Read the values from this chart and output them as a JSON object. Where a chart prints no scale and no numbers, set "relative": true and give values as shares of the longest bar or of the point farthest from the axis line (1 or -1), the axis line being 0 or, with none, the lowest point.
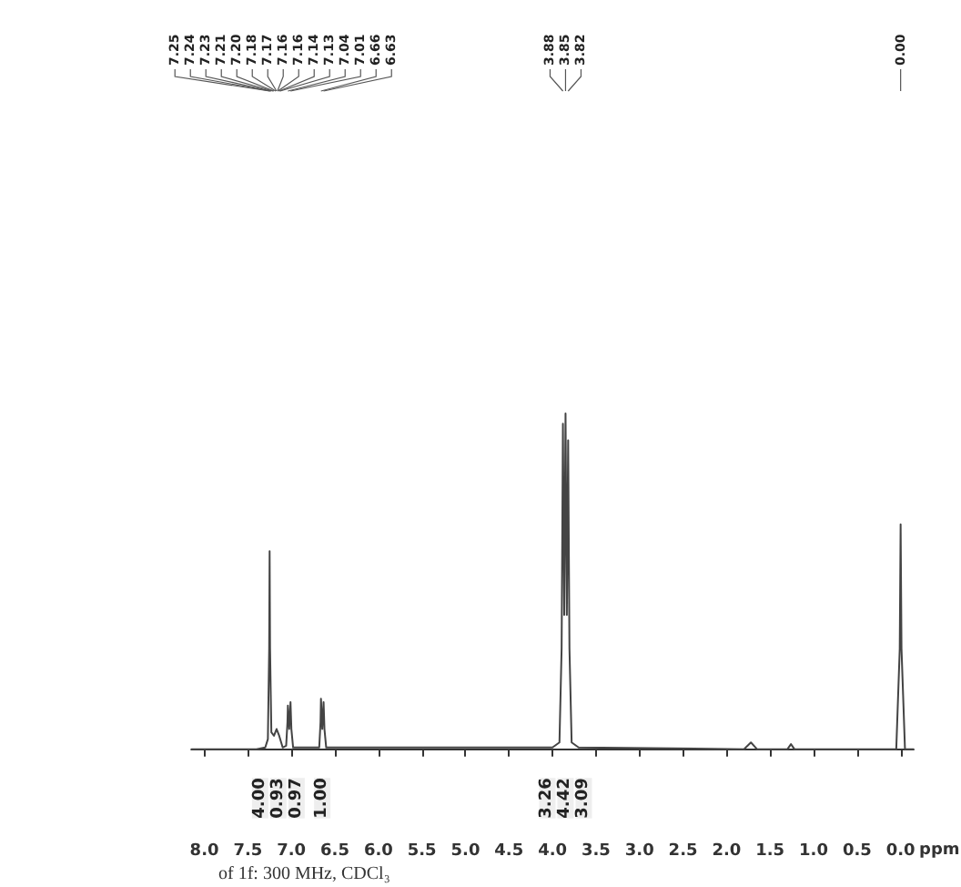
{
  "chart_data": {
    "type": "line",
    "relative": true,
    "xlabel": "ppm",
    "color": "#444444",
    "x": [
      8.15,
      7.4,
      7.3,
      7.27,
      7.255,
      7.25,
      7.245,
      7.23,
      7.2,
      7.17,
      7.14,
      7.1,
      7.06,
      7.045,
      7.04,
      7.025,
      7.01,
      7.0,
      6.98,
      6.68,
      6.665,
      6.66,
      6.645,
      6.63,
      6.62,
      6.6,
      4.0,
      3.92,
      3.895,
      3.88,
      3.865,
      3.85,
      3.835,
      3.82,
      3.805,
      3.78,
      3.7,
      1.8,
      1.72,
      1.65,
      1.3,
      1.26,
      1.22,
      0.05,
      0.01,
      0.0,
      -0.01,
      -0.05,
      -0.15
    ],
    "values": [
      0,
      0,
      0.005,
      0.03,
      0.3,
      0.59,
      0.3,
      0.05,
      0.04,
      0.06,
      0.04,
      0.005,
      0.01,
      0.08,
      0.13,
      0.06,
      0.14,
      0.06,
      0.005,
      0.005,
      0.08,
      0.15,
      0.06,
      0.14,
      0.06,
      0.005,
      0.005,
      0.02,
      0.3,
      0.97,
      0.4,
      1.0,
      0.4,
      0.92,
      0.3,
      0.02,
      0.005,
      0,
      0.02,
      0,
      0,
      0.015,
      0,
      0,
      0.3,
      0.67,
      0.3,
      0,
      0
    ],
    "xlim": [
      8.15,
      -0.15
    ],
    "xticks": [
      {
        "value": 8,
        "label": "8.0"
      },
      7.5,
      {
        "value": 7,
        "label": "7.0"
      },
      6.5,
      {
        "value": 6,
        "label": "6.0"
      },
      5.5,
      {
        "value": 5,
        "label": "5.0"
      },
      4.5,
      {
        "value": 4,
        "label": "4.0"
      },
      3.5,
      {
        "value": 3,
        "label": "3.0"
      },
      2.5,
      {
        "value": 2,
        "label": "2.0"
      },
      1.5,
      {
        "value": 1,
        "label": "1.0"
      },
      0.5,
      {
        "value": 0,
        "label": "0.0"
      }
    ],
    "annotations": [
      {
        "text": "7.25",
        "x": 7.25
      },
      {
        "text": "7.24",
        "x": 7.24
      },
      {
        "text": "7.23",
        "x": 7.23
      },
      {
        "text": "7.21",
        "x": 7.21
      },
      {
        "text": "7.20",
        "x": 7.2
      },
      {
        "text": "7.18",
        "x": 7.18
      },
      {
        "text": "7.17",
        "x": 7.17
      },
      {
        "text": "7.16",
        "x": 7.16
      },
      {
        "text": "7.16",
        "x": 7.155
      },
      {
        "text": "7.14",
        "x": 7.14
      },
      {
        "text": "7.13",
        "x": 7.13
      },
      {
        "text": "7.04",
        "x": 7.04
      },
      {
        "text": "7.01",
        "x": 7.01
      },
      {
        "text": "6.66",
        "x": 6.66
      },
      {
        "text": "6.63",
        "x": 6.63
      },
      {
        "text": "3.88",
        "x": 3.88
      },
      {
        "text": "3.85",
        "x": 3.85
      },
      {
        "text": "3.82",
        "x": 3.82
      },
      {
        "text": "0.00",
        "x": 0.0
      },
      {
        "text": "4.00",
        "x": 7.25,
        "y": 0
      },
      {
        "text": "0.93",
        "x": 7.17,
        "y": 0
      },
      {
        "text": "0.97",
        "x": 7.03,
        "y": 0
      },
      {
        "text": "1.00",
        "x": 6.645,
        "y": 0
      },
      {
        "text": "3.26",
        "x": 3.88,
        "y": 0
      },
      {
        "text": "4.42",
        "x": 3.85,
        "y": 0
      },
      {
        "text": "3.09",
        "x": 3.82,
        "y": 0
      },
      "of 1f: 300 MHz, CDCl₃"
    ]
  }
}
